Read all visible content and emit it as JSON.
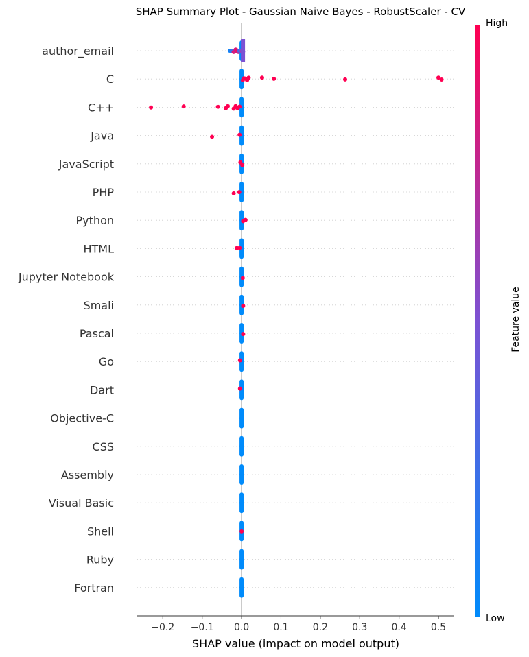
{
  "chart_data": {
    "type": "scatter",
    "title": "SHAP Summary Plot - Gaussian Naive Bayes - RobustScaler - CV",
    "xlabel": "SHAP value (impact on model output)",
    "xlim": [
      -0.265,
      0.54
    ],
    "xticks": [
      -0.2,
      -0.1,
      0.0,
      0.1,
      0.2,
      0.3,
      0.4,
      0.5
    ],
    "xtick_labels": [
      "−0.2",
      "−0.1",
      "0.0",
      "0.1",
      "0.2",
      "0.3",
      "0.4",
      "0.5"
    ],
    "features": [
      "author_email",
      "C",
      "C++",
      "Java",
      "JavaScript",
      "PHP",
      "Python",
      "HTML",
      "Jupyter Notebook",
      "Smali",
      "Pascal",
      "Go",
      "Dart",
      "Objective-C",
      "CSS",
      "Assembly",
      "Visual Basic",
      "Shell",
      "Ruby",
      "Fortran"
    ],
    "points": {
      "author_email": [
        [
          -0.03,
          0.05
        ],
        [
          -0.028,
          0.1
        ],
        [
          -0.025,
          0.2
        ],
        [
          -0.022,
          0.25
        ],
        [
          -0.02,
          0.9
        ],
        [
          -0.018,
          0.8
        ],
        [
          -0.015,
          0.85
        ],
        [
          -0.012,
          0.9
        ],
        [
          -0.01,
          0.95
        ],
        [
          -0.008,
          0.75
        ],
        [
          -0.006,
          0.35
        ],
        [
          -0.004,
          0.3
        ],
        [
          -0.002,
          0.4
        ],
        [
          0.0,
          0.55
        ],
        [
          0.002,
          0.6
        ],
        [
          0.004,
          0.55
        ]
      ],
      "C": [
        [
          0.0,
          0.0
        ],
        [
          0.003,
          0.95
        ],
        [
          0.006,
          1.0
        ],
        [
          0.01,
          1.0
        ],
        [
          0.014,
          1.0
        ],
        [
          0.018,
          1.0
        ],
        [
          0.052,
          1.0
        ],
        [
          0.082,
          1.0
        ],
        [
          0.263,
          1.0
        ],
        [
          0.5,
          1.0
        ],
        [
          0.508,
          1.0
        ]
      ],
      "C++": [
        [
          0.0,
          0.0
        ],
        [
          -0.23,
          1.0
        ],
        [
          -0.147,
          1.0
        ],
        [
          -0.06,
          1.0
        ],
        [
          -0.04,
          1.0
        ],
        [
          -0.035,
          1.0
        ],
        [
          -0.02,
          1.0
        ],
        [
          -0.015,
          1.0
        ],
        [
          -0.01,
          1.0
        ],
        [
          -0.005,
          1.0
        ]
      ],
      "Java": [
        [
          0.0,
          0.0
        ],
        [
          -0.075,
          1.0
        ],
        [
          -0.005,
          1.0
        ]
      ],
      "JavaScript": [
        [
          0.0,
          0.0
        ],
        [
          -0.003,
          1.0
        ],
        [
          0.002,
          1.0
        ]
      ],
      "PHP": [
        [
          0.0,
          0.0
        ],
        [
          -0.02,
          1.0
        ],
        [
          -0.006,
          1.0
        ]
      ],
      "Python": [
        [
          0.0,
          0.0
        ],
        [
          0.01,
          1.0
        ],
        [
          0.004,
          1.0
        ]
      ],
      "HTML": [
        [
          0.0,
          0.0
        ],
        [
          -0.012,
          1.0
        ],
        [
          -0.005,
          1.0
        ]
      ],
      "Jupyter Notebook": [
        [
          0.0,
          0.0
        ],
        [
          0.003,
          1.0
        ]
      ],
      "Smali": [
        [
          0.0,
          0.0
        ],
        [
          0.004,
          1.0
        ]
      ],
      "Pascal": [
        [
          0.0,
          0.0
        ],
        [
          0.004,
          1.0
        ]
      ],
      "Go": [
        [
          0.0,
          0.0
        ],
        [
          -0.004,
          1.0
        ]
      ],
      "Dart": [
        [
          0.0,
          0.0
        ],
        [
          -0.004,
          1.0
        ]
      ],
      "Objective-C": [
        [
          0.0,
          0.0
        ]
      ],
      "CSS": [
        [
          0.0,
          0.0
        ]
      ],
      "Assembly": [
        [
          0.0,
          0.0
        ]
      ],
      "Visual Basic": [
        [
          0.0,
          0.0
        ]
      ],
      "Shell": [
        [
          0.0,
          0.0
        ],
        [
          0.0,
          1.0
        ]
      ],
      "Ruby": [
        [
          0.0,
          0.0
        ]
      ],
      "Fortran": [
        [
          0.0,
          0.0
        ]
      ]
    },
    "colorbar": {
      "label": "Feature value",
      "high_label": "High",
      "low_label": "Low",
      "low_color": "#008bfb",
      "mid_color": "#7c52d3",
      "high_color": "#ff0052"
    },
    "grid": "horizontal dotted lines per feature"
  }
}
